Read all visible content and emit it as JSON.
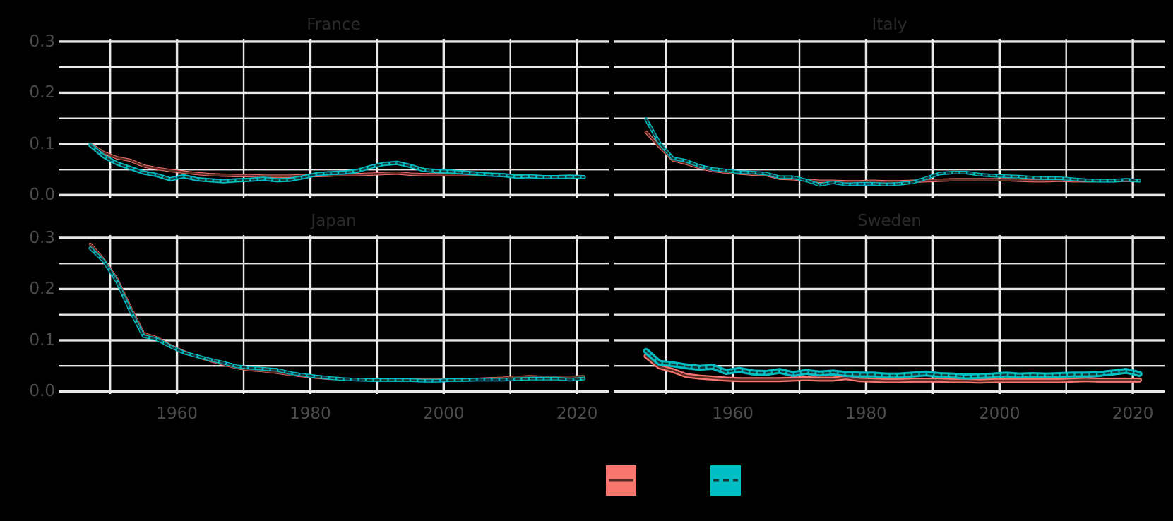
{
  "app": {
    "background": "#000000"
  },
  "colors": {
    "grid": "#E8E8E8",
    "strip_text": "#2a2a2a",
    "axis_text": "#4c4c4c",
    "band_solid": "#F8766D",
    "line_solid": "#5A2A24",
    "band_dashed": "#00BFC4",
    "line_dashed": "#143839"
  },
  "chart_data": {
    "type": "line",
    "layout": "2x2 facet grid, shared axes, gridlines on, legend bottom center",
    "x_ticks": {
      "values": [
        1960,
        1980,
        2000,
        2020
      ],
      "labels": [
        "1960",
        "1980",
        "2000",
        "2020"
      ]
    },
    "x_minor": [
      1950,
      1970,
      1990,
      2010
    ],
    "y_ticks": {
      "values": [
        0,
        0.1,
        0.2,
        0.3
      ],
      "labels": [
        "0.0",
        "0.1",
        "0.2",
        "0.3"
      ]
    },
    "y_minor": [
      0.05,
      0.15,
      0.25
    ],
    "xlim": [
      1942.25,
      2024.75
    ],
    "ylim": [
      -0.005,
      0.3055
    ],
    "years": [
      1947,
      1949,
      1951,
      1953,
      1955,
      1957,
      1959,
      1961,
      1963,
      1965,
      1967,
      1969,
      1971,
      1973,
      1975,
      1977,
      1979,
      1981,
      1983,
      1985,
      1987,
      1989,
      1991,
      1993,
      1995,
      1997,
      1999,
      2001,
      2003,
      2005,
      2007,
      2009,
      2011,
      2013,
      2015,
      2017,
      2019,
      2021
    ],
    "series_meta": [
      {
        "id": "solid",
        "band_color": "#F8766D",
        "line_color": "#5A2A24",
        "linetype": "solid"
      },
      {
        "id": "dashed",
        "band_color": "#00BFC4",
        "line_color": "#143839",
        "linetype": "dashed"
      }
    ],
    "facets": [
      {
        "title": "France",
        "band_width_solid": 4.5,
        "band_width_dashed": 6,
        "solid": [
          0.1,
          0.083,
          0.073,
          0.068,
          0.057,
          0.052,
          0.048,
          0.045,
          0.042,
          0.04,
          0.039,
          0.038,
          0.038,
          0.037,
          0.037,
          0.037,
          0.038,
          0.038,
          0.039,
          0.04,
          0.04,
          0.041,
          0.042,
          0.043,
          0.041,
          0.04,
          0.04,
          0.04,
          0.04,
          0.04,
          0.04,
          0.039,
          0.038,
          0.037,
          0.036,
          0.036,
          0.037,
          0.036
        ],
        "dashed": [
          0.098,
          0.076,
          0.062,
          0.053,
          0.044,
          0.039,
          0.031,
          0.037,
          0.031,
          0.029,
          0.027,
          0.029,
          0.03,
          0.032,
          0.029,
          0.03,
          0.035,
          0.041,
          0.043,
          0.044,
          0.047,
          0.055,
          0.061,
          0.063,
          0.057,
          0.049,
          0.047,
          0.046,
          0.044,
          0.042,
          0.04,
          0.039,
          0.036,
          0.037,
          0.035,
          0.035,
          0.036,
          0.035
        ]
      },
      {
        "title": "Italy",
        "band_width_solid": 4.5,
        "band_width_dashed": 5,
        "solid": [
          0.123,
          0.095,
          0.069,
          0.062,
          0.054,
          0.048,
          0.045,
          0.043,
          0.041,
          0.04,
          0.033,
          0.032,
          0.029,
          0.027,
          0.027,
          0.026,
          0.026,
          0.027,
          0.026,
          0.026,
          0.027,
          0.028,
          0.029,
          0.03,
          0.03,
          0.03,
          0.03,
          0.03,
          0.029,
          0.028,
          0.028,
          0.029,
          0.028,
          0.028,
          0.028,
          0.028,
          0.029,
          0.028
        ],
        "dashed": [
          0.148,
          0.102,
          0.072,
          0.067,
          0.057,
          0.051,
          0.048,
          0.045,
          0.044,
          0.042,
          0.035,
          0.035,
          0.029,
          0.02,
          0.025,
          0.021,
          0.022,
          0.022,
          0.021,
          0.022,
          0.025,
          0.033,
          0.042,
          0.044,
          0.044,
          0.04,
          0.038,
          0.037,
          0.036,
          0.034,
          0.033,
          0.033,
          0.031,
          0.029,
          0.028,
          0.028,
          0.03,
          0.028
        ]
      },
      {
        "title": "Japan",
        "band_width_solid": 4,
        "band_width_dashed": 5,
        "solid": [
          0.288,
          0.258,
          0.22,
          0.165,
          0.113,
          0.105,
          0.09,
          0.078,
          0.068,
          0.06,
          0.053,
          0.046,
          0.042,
          0.04,
          0.037,
          0.033,
          0.03,
          0.027,
          0.025,
          0.024,
          0.024,
          0.024,
          0.023,
          0.023,
          0.023,
          0.023,
          0.023,
          0.023,
          0.024,
          0.024,
          0.025,
          0.026,
          0.028,
          0.029,
          0.028,
          0.028,
          0.028,
          0.029
        ],
        "dashed": [
          0.28,
          0.255,
          0.215,
          0.158,
          0.108,
          0.102,
          0.088,
          0.076,
          0.069,
          0.062,
          0.056,
          0.049,
          0.046,
          0.044,
          0.042,
          0.036,
          0.032,
          0.029,
          0.026,
          0.024,
          0.023,
          0.022,
          0.022,
          0.022,
          0.022,
          0.021,
          0.021,
          0.022,
          0.022,
          0.023,
          0.023,
          0.023,
          0.024,
          0.025,
          0.025,
          0.025,
          0.023,
          0.025
        ]
      },
      {
        "title": "Sweden",
        "band_width_solid": 7,
        "band_width_dashed": 8.5,
        "solid": [
          0.069,
          0.048,
          0.041,
          0.031,
          0.028,
          0.026,
          0.024,
          0.023,
          0.023,
          0.023,
          0.023,
          0.024,
          0.025,
          0.024,
          0.024,
          0.027,
          0.023,
          0.022,
          0.021,
          0.021,
          0.022,
          0.022,
          0.022,
          0.021,
          0.021,
          0.02,
          0.021,
          0.021,
          0.021,
          0.021,
          0.021,
          0.021,
          0.022,
          0.023,
          0.022,
          0.022,
          0.022,
          0.022
        ],
        "dashed": [
          0.079,
          0.056,
          0.053,
          0.049,
          0.046,
          0.048,
          0.038,
          0.042,
          0.037,
          0.036,
          0.04,
          0.034,
          0.038,
          0.035,
          0.037,
          0.034,
          0.033,
          0.033,
          0.031,
          0.031,
          0.033,
          0.035,
          0.032,
          0.031,
          0.029,
          0.03,
          0.031,
          0.033,
          0.031,
          0.032,
          0.031,
          0.032,
          0.033,
          0.033,
          0.034,
          0.037,
          0.04,
          0.034
        ]
      }
    ],
    "legend": {
      "entries": [
        {
          "swatch": "#F8766D",
          "linetype": "solid",
          "label": ""
        },
        {
          "swatch": "#00BFC4",
          "linetype": "dashed",
          "label": ""
        }
      ]
    }
  }
}
